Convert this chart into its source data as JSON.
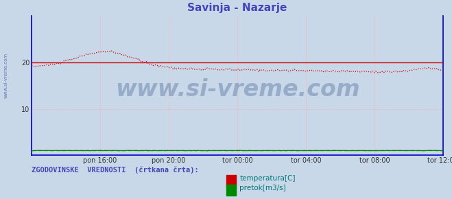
{
  "title": "Savinja - Nazarje",
  "title_color": "#4444bb",
  "title_fontsize": 11,
  "bg_color": "#c8d8e8",
  "plot_bg_color": "#c8d8e8",
  "grid_color": "#ffaaaa",
  "xlim": [
    0,
    288
  ],
  "ylim": [
    0,
    30
  ],
  "ytick_vals": [
    10,
    20
  ],
  "xtick_positions": [
    48,
    96,
    144,
    192,
    240,
    288
  ],
  "xtick_labels": [
    "pon 16:00",
    "pon 20:00",
    "tor 00:00",
    "tor 04:00",
    "tor 08:00",
    "tor 12:00"
  ],
  "axis_color": "#0000cc",
  "tick_color": "#333333",
  "tick_fontsize": 7,
  "watermark_text": "www.si-vreme.com",
  "watermark_color": "#1a3a7a",
  "watermark_alpha": 0.28,
  "watermark_fontsize": 24,
  "sidebar_text": "www.si-vreme.com",
  "sidebar_color": "#4466aa",
  "sidebar_fontsize": 5,
  "legend_text": "ZGODOVINSKE  VREDNOSTI  (črtkana črta):",
  "legend_color": "#4444bb",
  "legend_fontsize": 7.5,
  "temp_color": "#cc0000",
  "pretok_color": "#008800",
  "temp_label": "temperatura[C]",
  "pretok_label": "pretok[m3/s]",
  "temp_avg_value": 20.0,
  "pretok_avg_value": 1.0,
  "temp_noise_std": 0.12,
  "pretok_noise_std": 0.02
}
